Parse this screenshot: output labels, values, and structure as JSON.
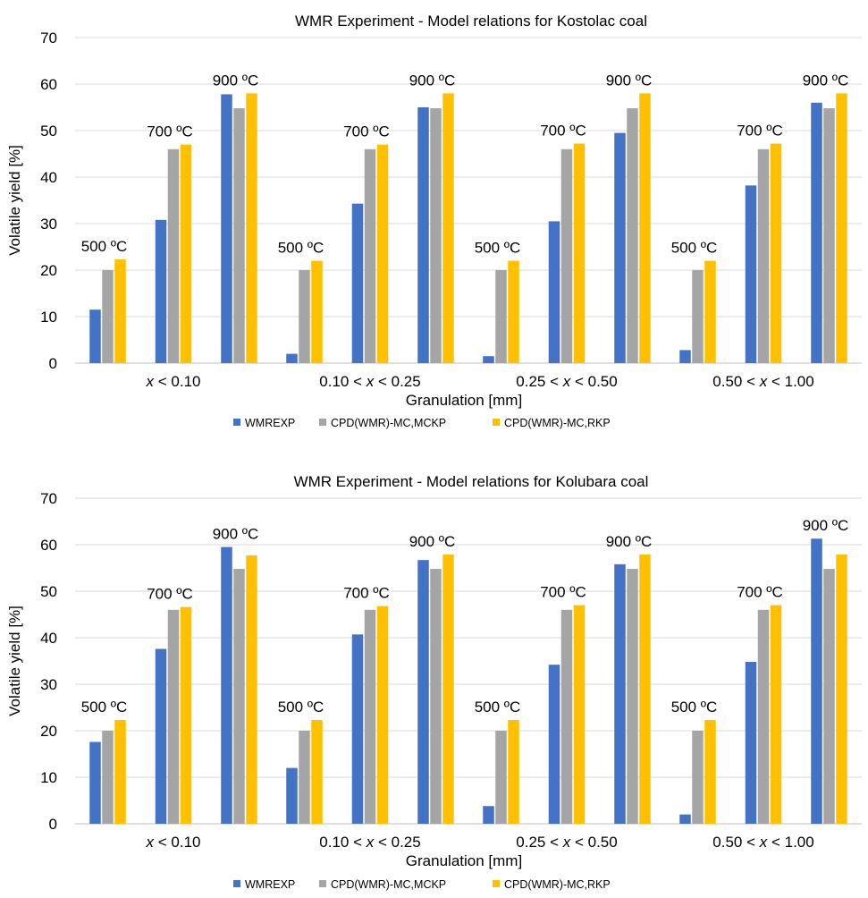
{
  "colors": {
    "WMREXP": "#4472C4",
    "MCKP": "#A5A5A5",
    "RKP": "#FFC000",
    "grid": "#D9D9D9",
    "axis": "#BFBFBF"
  },
  "chart_data": [
    {
      "type": "bar",
      "title": "WMR Experiment - Model relations for Kostolac coal",
      "xlabel": "Granulation [mm]",
      "ylabel": "Volatile yield [%]",
      "ylim": [
        0,
        70
      ],
      "yticks": [
        0,
        10,
        20,
        30,
        40,
        50,
        60,
        70
      ],
      "grid": true,
      "legend_position": "bottom",
      "groups": [
        {
          "label_parts": [
            "",
            "x",
            " < 0.10"
          ]
        },
        {
          "label_parts": [
            "0.10 < ",
            "x",
            " < 0.25"
          ]
        },
        {
          "label_parts": [
            "0.25 < ",
            "x",
            " < 0.50"
          ]
        },
        {
          "label_parts": [
            "0.50 < ",
            "x",
            " < 1.00"
          ]
        }
      ],
      "temperatures": [
        "500 ºC",
        "700 ºC",
        "900 ºC"
      ],
      "series": [
        {
          "name": "WMREXP",
          "color": "#4472C4",
          "values": [
            [
              11.5,
              30.8,
              57.8
            ],
            [
              2.0,
              34.3,
              55.0
            ],
            [
              1.5,
              30.5,
              49.5
            ],
            [
              2.8,
              38.2,
              56.0
            ]
          ]
        },
        {
          "name": "CPD(WMR)-MC,MCKP",
          "color": "#A5A5A5",
          "values": [
            [
              20.0,
              46.0,
              54.8
            ],
            [
              20.0,
              46.0,
              54.8
            ],
            [
              20.0,
              46.0,
              54.8
            ],
            [
              20.0,
              46.0,
              54.8
            ]
          ]
        },
        {
          "name": "CPD(WMR)-MC,RKP",
          "color": "#FFC000",
          "values": [
            [
              22.3,
              47.0,
              58.0
            ],
            [
              22.0,
              47.0,
              58.0
            ],
            [
              22.0,
              47.2,
              58.0
            ],
            [
              22.0,
              47.2,
              58.0
            ]
          ]
        }
      ]
    },
    {
      "type": "bar",
      "title": "WMR Experiment - Model relations for Kolubara coal",
      "xlabel": "Granulation [mm]",
      "ylabel": "Volatile yield [%]",
      "ylim": [
        0,
        70
      ],
      "yticks": [
        0,
        10,
        20,
        30,
        40,
        50,
        60,
        70
      ],
      "grid": true,
      "legend_position": "bottom",
      "groups": [
        {
          "label_parts": [
            "",
            "x",
            " < 0.10"
          ]
        },
        {
          "label_parts": [
            "0.10 < ",
            "x",
            " < 0.25"
          ]
        },
        {
          "label_parts": [
            "0.25 < ",
            "x",
            " < 0.50"
          ]
        },
        {
          "label_parts": [
            "0.50 < ",
            "x",
            " < 1.00"
          ]
        }
      ],
      "temperatures": [
        "500 ºC",
        "700 ºC",
        "900 ºC"
      ],
      "series": [
        {
          "name": "WMREXP",
          "color": "#4472C4",
          "values": [
            [
              17.6,
              37.6,
              59.5
            ],
            [
              12.0,
              40.7,
              56.7
            ],
            [
              3.8,
              34.2,
              55.8
            ],
            [
              2.0,
              34.8,
              61.3
            ]
          ]
        },
        {
          "name": "CPD(WMR)-MC,MCKP",
          "color": "#A5A5A5",
          "values": [
            [
              20.0,
              46.0,
              54.8
            ],
            [
              20.0,
              46.0,
              54.8
            ],
            [
              20.0,
              46.0,
              54.8
            ],
            [
              20.0,
              46.0,
              54.8
            ]
          ]
        },
        {
          "name": "CPD(WMR)-MC,RKP",
          "color": "#FFC000",
          "values": [
            [
              22.3,
              46.6,
              57.7
            ],
            [
              22.3,
              46.8,
              57.9
            ],
            [
              22.3,
              47.0,
              57.9
            ],
            [
              22.3,
              47.0,
              57.9
            ]
          ]
        }
      ]
    }
  ]
}
